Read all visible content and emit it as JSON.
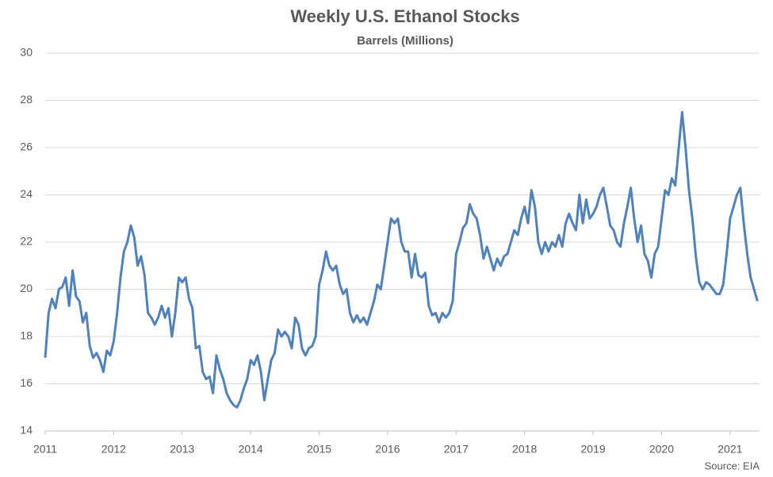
{
  "chart_data": {
    "type": "line",
    "title": "Weekly U.S. Ethanol Stocks",
    "subtitle": "Barrels (Millions)",
    "annotation": "Source: EIA",
    "xlim": [
      2011,
      2021.43
    ],
    "xticks": [
      2011,
      2012,
      2013,
      2014,
      2015,
      2016,
      2017,
      2018,
      2019,
      2020,
      2021
    ],
    "ylim": [
      14,
      30
    ],
    "yticks": [
      14,
      16,
      18,
      20,
      22,
      24,
      26,
      28,
      30
    ],
    "grid": true,
    "x": [
      2011.0,
      2011.05,
      2011.1,
      2011.15,
      2011.2,
      2011.25,
      2011.3,
      2011.35,
      2011.4,
      2011.45,
      2011.5,
      2011.55,
      2011.6,
      2011.65,
      2011.7,
      2011.75,
      2011.8,
      2011.85,
      2011.9,
      2011.95,
      2012.0,
      2012.05,
      2012.1,
      2012.15,
      2012.2,
      2012.25,
      2012.3,
      2012.35,
      2012.4,
      2012.45,
      2012.5,
      2012.55,
      2012.6,
      2012.65,
      2012.7,
      2012.75,
      2012.8,
      2012.85,
      2012.9,
      2012.95,
      2013.0,
      2013.05,
      2013.1,
      2013.15,
      2013.2,
      2013.25,
      2013.3,
      2013.35,
      2013.4,
      2013.45,
      2013.5,
      2013.55,
      2013.6,
      2013.65,
      2013.7,
      2013.75,
      2013.8,
      2013.85,
      2013.9,
      2013.95,
      2014.0,
      2014.05,
      2014.1,
      2014.15,
      2014.2,
      2014.25,
      2014.3,
      2014.35,
      2014.4,
      2014.45,
      2014.5,
      2014.55,
      2014.6,
      2014.65,
      2014.7,
      2014.75,
      2014.8,
      2014.85,
      2014.9,
      2014.95,
      2015.0,
      2015.05,
      2015.1,
      2015.15,
      2015.2,
      2015.25,
      2015.3,
      2015.35,
      2015.4,
      2015.45,
      2015.5,
      2015.55,
      2015.6,
      2015.65,
      2015.7,
      2015.75,
      2015.8,
      2015.85,
      2015.9,
      2015.95,
      2016.0,
      2016.05,
      2016.1,
      2016.15,
      2016.2,
      2016.25,
      2016.3,
      2016.35,
      2016.4,
      2016.45,
      2016.5,
      2016.55,
      2016.6,
      2016.65,
      2016.7,
      2016.75,
      2016.8,
      2016.85,
      2016.9,
      2016.95,
      2017.0,
      2017.05,
      2017.1,
      2017.15,
      2017.2,
      2017.25,
      2017.3,
      2017.35,
      2017.4,
      2017.45,
      2017.5,
      2017.55,
      2017.6,
      2017.65,
      2017.7,
      2017.75,
      2017.8,
      2017.85,
      2017.9,
      2017.95,
      2018.0,
      2018.05,
      2018.1,
      2018.15,
      2018.2,
      2018.25,
      2018.3,
      2018.35,
      2018.4,
      2018.45,
      2018.5,
      2018.55,
      2018.6,
      2018.65,
      2018.7,
      2018.75,
      2018.8,
      2018.85,
      2018.9,
      2018.95,
      2019.0,
      2019.05,
      2019.1,
      2019.15,
      2019.2,
      2019.25,
      2019.3,
      2019.35,
      2019.4,
      2019.45,
      2019.5,
      2019.55,
      2019.6,
      2019.65,
      2019.7,
      2019.75,
      2019.8,
      2019.85,
      2019.9,
      2019.95,
      2020.0,
      2020.05,
      2020.1,
      2020.15,
      2020.2,
      2020.25,
      2020.3,
      2020.35,
      2020.4,
      2020.45,
      2020.5,
      2020.55,
      2020.6,
      2020.65,
      2020.7,
      2020.75,
      2020.8,
      2020.85,
      2020.9,
      2020.95,
      2021.0,
      2021.05,
      2021.1,
      2021.15,
      2021.2,
      2021.25,
      2021.3,
      2021.35,
      2021.4
    ],
    "series": [
      {
        "name": "Ethanol Stocks",
        "color": "#4f81bd",
        "values": [
          17.1,
          19.0,
          19.6,
          19.2,
          20.0,
          20.1,
          20.5,
          19.3,
          20.8,
          19.7,
          19.5,
          18.6,
          19.0,
          17.6,
          17.1,
          17.3,
          17.0,
          16.5,
          17.4,
          17.2,
          17.8,
          19.0,
          20.5,
          21.6,
          22.0,
          22.7,
          22.2,
          21.0,
          21.4,
          20.6,
          19.0,
          18.8,
          18.5,
          18.8,
          19.3,
          18.8,
          19.2,
          18.0,
          19.0,
          20.5,
          20.3,
          20.5,
          19.6,
          19.2,
          17.5,
          17.6,
          16.5,
          16.2,
          16.3,
          15.6,
          17.2,
          16.6,
          16.2,
          15.6,
          15.3,
          15.1,
          15.0,
          15.3,
          15.8,
          16.2,
          17.0,
          16.8,
          17.2,
          16.5,
          15.3,
          16.2,
          17.0,
          17.3,
          18.3,
          18.0,
          18.2,
          18.0,
          17.5,
          18.8,
          18.5,
          17.5,
          17.2,
          17.5,
          17.6,
          18.0,
          20.2,
          20.8,
          21.6,
          21.0,
          20.8,
          21.0,
          20.2,
          19.8,
          20.0,
          19.0,
          18.6,
          18.9,
          18.6,
          18.8,
          18.5,
          19.0,
          19.5,
          20.2,
          20.0,
          21.0,
          22.0,
          23.0,
          22.8,
          23.0,
          22.0,
          21.6,
          21.6,
          20.5,
          21.5,
          20.6,
          20.5,
          20.7,
          19.3,
          18.9,
          19.0,
          18.6,
          19.0,
          18.8,
          19.0,
          19.5,
          21.5,
          22.0,
          22.6,
          22.8,
          23.6,
          23.2,
          23.0,
          22.3,
          21.3,
          21.8,
          21.3,
          20.8,
          21.3,
          21.0,
          21.4,
          21.5,
          22.0,
          22.5,
          22.3,
          23.0,
          23.5,
          22.8,
          24.2,
          23.5,
          22.0,
          21.5,
          22.0,
          21.6,
          22.0,
          21.8,
          22.3,
          21.8,
          22.8,
          23.2,
          22.8,
          22.5,
          24.0,
          22.8,
          23.8,
          23.0,
          23.2,
          23.5,
          24.0,
          24.3,
          23.5,
          22.7,
          22.5,
          22.0,
          21.8,
          22.8,
          23.5,
          24.3,
          23.0,
          22.0,
          22.7,
          21.5,
          21.2,
          20.5,
          21.5,
          21.8,
          23.0,
          24.2,
          24.0,
          24.7,
          24.4,
          26.0,
          27.5,
          26.0,
          24.2,
          23.0,
          21.4,
          20.3,
          20.0,
          20.3,
          20.2,
          20.0,
          19.8,
          19.8,
          20.2,
          21.5,
          23.0,
          23.5,
          24.0,
          24.3,
          22.8,
          21.5,
          20.5,
          20.0,
          19.5
        ]
      }
    ]
  }
}
